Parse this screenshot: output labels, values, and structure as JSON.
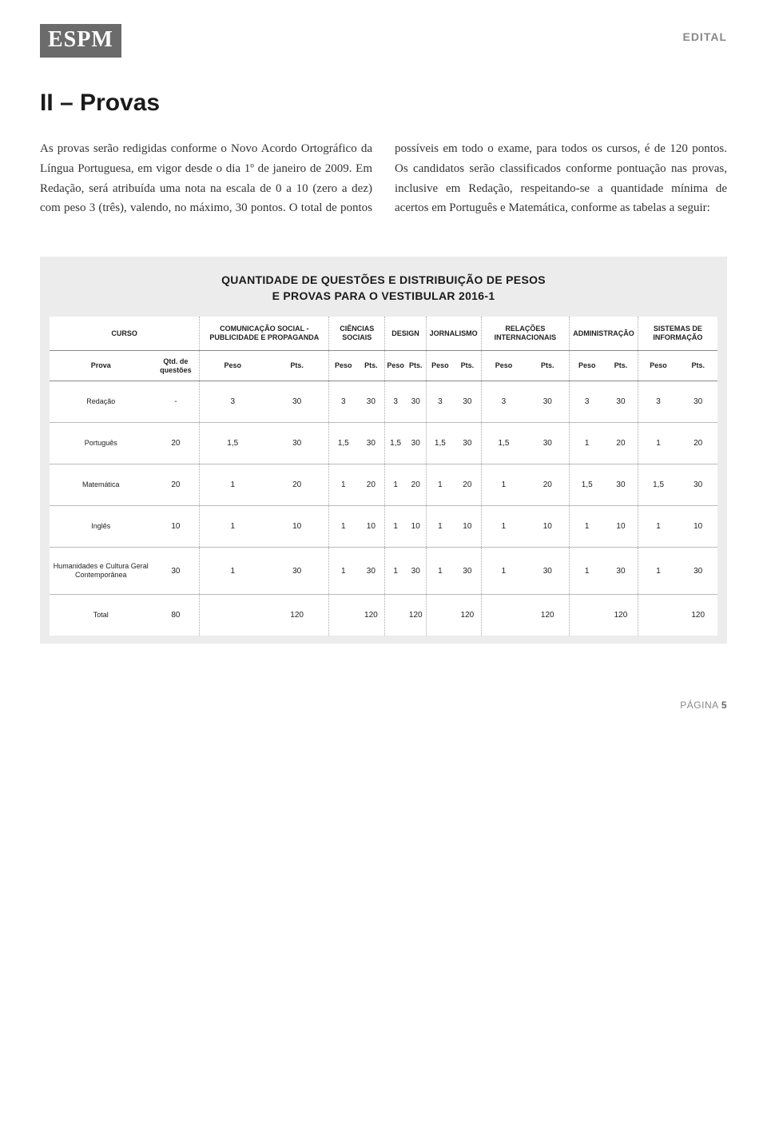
{
  "header": {
    "logo": "ESPM",
    "edital": "EDITAL"
  },
  "section": {
    "title": "II – Provas",
    "body": "As provas serão redigidas conforme o Novo Acordo Ortográfico da Língua Portuguesa, em vigor desde o dia 1º de janeiro de 2009. Em Redação, será atribuída uma nota na escala de 0 a 10 (zero a dez) com peso 3 (três), valendo, no máximo, 30 pontos. O total de pontos possíveis em todo o exame, para todos os cursos, é de 120 pontos. Os candidatos serão classificados conforme pontuação nas provas, inclusive em Redação, respeitando-se a quantidade mínima de acertos em Português e Matemática, conforme as tabelas a seguir:"
  },
  "table": {
    "title_line1": "QUANTIDADE DE QUESTÕES E DISTRIBUIÇÃO DE PESOS",
    "title_line2": "E PROVAS PARA O VESTIBULAR 2016-1",
    "curso_label": "CURSO",
    "cursos": [
      "COMUNICAÇÃO SOCIAL - PUBLICIDADE E PROPAGANDA",
      "CIÊNCIAS SOCIAIS",
      "DESIGN",
      "JORNALISMO",
      "RELAÇÕES INTERNACIONAIS",
      "ADMINISTRAÇÃO",
      "SISTEMAS DE INFORMAÇÃO"
    ],
    "subheaders": {
      "prova": "Prova",
      "qtd": "Qtd. de questões",
      "peso": "Peso",
      "pts": "Pts."
    },
    "rows": [
      {
        "label": "Redação",
        "qtd": "-",
        "cells": [
          "3",
          "30",
          "3",
          "30",
          "3",
          "30",
          "3",
          "30",
          "3",
          "30",
          "3",
          "30",
          "3",
          "30"
        ]
      },
      {
        "label": "Português",
        "qtd": "20",
        "cells": [
          "1,5",
          "30",
          "1,5",
          "30",
          "1,5",
          "30",
          "1,5",
          "30",
          "1,5",
          "30",
          "1",
          "20",
          "1",
          "20"
        ]
      },
      {
        "label": "Matemática",
        "qtd": "20",
        "cells": [
          "1",
          "20",
          "1",
          "20",
          "1",
          "20",
          "1",
          "20",
          "1",
          "20",
          "1,5",
          "30",
          "1,5",
          "30"
        ]
      },
      {
        "label": "Inglês",
        "qtd": "10",
        "cells": [
          "1",
          "10",
          "1",
          "10",
          "1",
          "10",
          "1",
          "10",
          "1",
          "10",
          "1",
          "10",
          "1",
          "10"
        ]
      },
      {
        "label": "Humanidades e Cultura Geral Contemporânea",
        "qtd": "30",
        "cells": [
          "1",
          "30",
          "1",
          "30",
          "1",
          "30",
          "1",
          "30",
          "1",
          "30",
          "1",
          "30",
          "1",
          "30"
        ]
      },
      {
        "label": "Total",
        "qtd": "80",
        "cells": [
          "",
          "120",
          "",
          "120",
          "",
          "120",
          "",
          "120",
          "",
          "120",
          "",
          "120",
          "",
          "120"
        ]
      }
    ]
  },
  "footer": {
    "page_label": "PÁGINA",
    "page_number": "5"
  },
  "styles": {
    "logo_bg": "#6b6b6b",
    "edital_color": "#888888",
    "body_text": "#333333",
    "table_bg": "#ececec",
    "table_border": "#bbbbbb",
    "dot_border": "#aaaaaa"
  }
}
